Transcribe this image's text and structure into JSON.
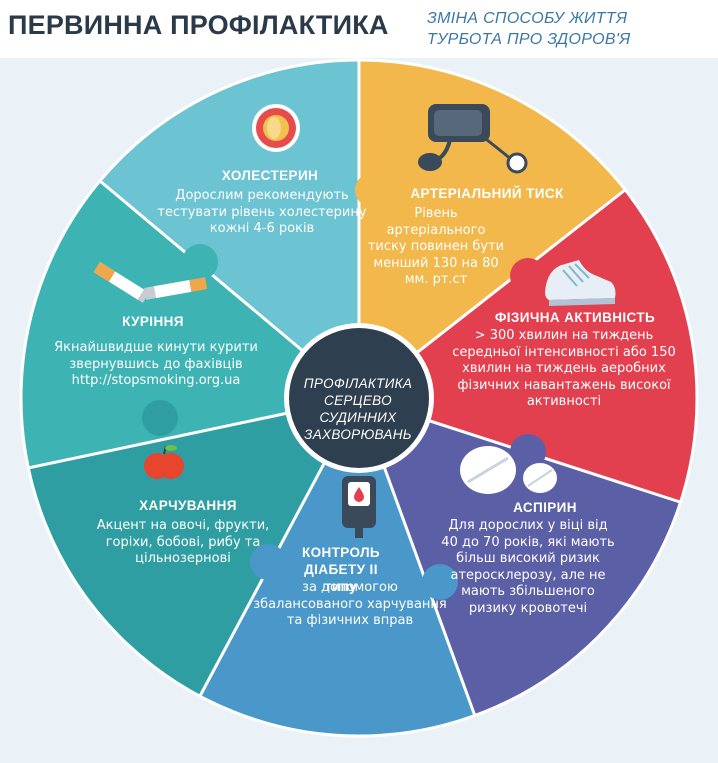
{
  "header": {
    "title": "ПЕРВИННА ПРОФІЛАКТИКА",
    "subtitle_line1": "ЗМІНА СПОСОБУ ЖИТТЯ",
    "subtitle_line2": "ТУРБОТА ПРО ЗДОРОВ'Я"
  },
  "center": {
    "line1": "ПРОФІЛАКТИКА",
    "line2": "СЕРЦЕВО",
    "line3": "СУДИННИХ",
    "line4": "ЗАХВОРЮВАНЬ"
  },
  "segments": {
    "cholesterol": {
      "title": "ХОЛЕСТЕРИН",
      "text": "Дорослим рекомендують тестувати рівень холестерину кожні 4-6 років",
      "color": "#6cc3d1",
      "icon": "artery-icon"
    },
    "pressure": {
      "title": "АРТЕРІАЛЬНИЙ ТИСК",
      "text": "Рівень артеріального тиску повинен бути менший 130 на 80 мм. рт.ст",
      "color": "#f2b84b",
      "icon": "blood-pressure-cuff-icon"
    },
    "activity": {
      "title": "ФІЗИЧНА АКТИВНІСТЬ",
      "text": "> 300 хвилин на тиждень середньої інтенсивності або 150 хвилин на тиждень аеробних фізичних навантажень високої активності",
      "color": "#e23f4f",
      "icon": "sneaker-icon"
    },
    "aspirin": {
      "title": "АСПІРИН",
      "text": "Для дорослих у віці від 40 до 70 років, які мають більш високий ризик атеросклерозу, але не мають збільшеного ризику кровотечі",
      "color": "#5b5fa6",
      "icon": "pills-icon"
    },
    "diabetes": {
      "title": "КОНТРОЛЬ ДІАБЕТУ ІІ типу",
      "text": "за допомогою збалансованого харчування та фізичних вправ",
      "color": "#4a97c9",
      "icon": "glucometer-icon"
    },
    "nutrition": {
      "title": "ХАРЧУВАННЯ",
      "text": "Акцент на овочі, фрукти, горіхи, бобові, рибу та цільнозернові",
      "color": "#2f9ea3",
      "icon": "apple-icon"
    },
    "smoking": {
      "title": "КУРІННЯ",
      "text": "Якнайшвидше кинути курити звернувшись до фахівців http://stopsmoking.org.ua",
      "color": "#3db3b4",
      "icon": "cigarette-icon"
    }
  }
}
